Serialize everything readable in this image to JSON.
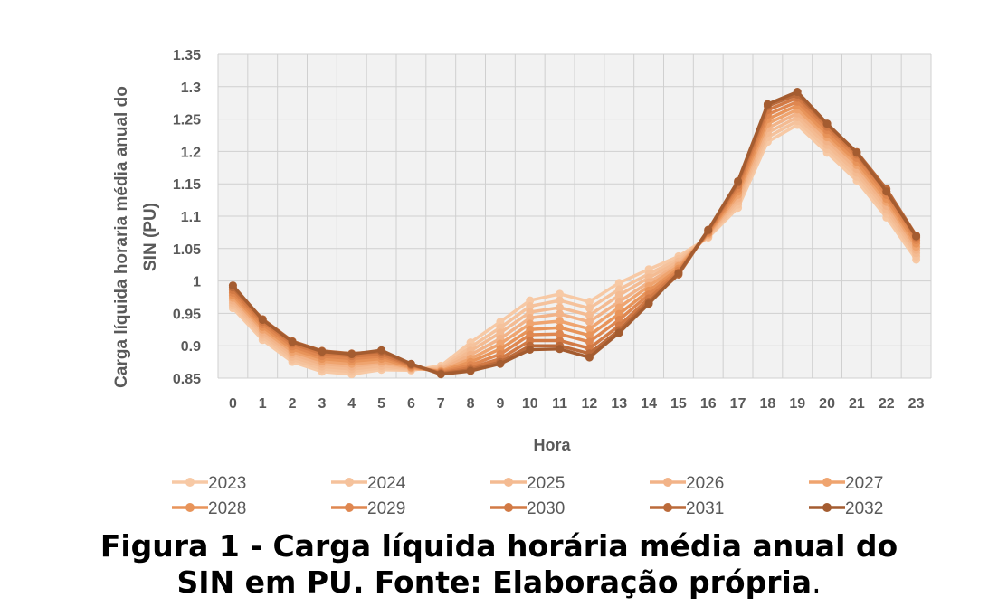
{
  "chart_data": {
    "type": "line",
    "title": "",
    "xlabel": "Hora",
    "ylabel_line1": "Carga líquida horaria média anual do",
    "ylabel_line2": "SIN (PU)",
    "x": [
      0,
      1,
      2,
      3,
      4,
      5,
      6,
      7,
      8,
      9,
      10,
      11,
      12,
      13,
      14,
      15,
      16,
      17,
      18,
      19,
      20,
      21,
      22,
      23
    ],
    "y_ticks": [
      "1.35",
      "1.3",
      "1.25",
      "1.2",
      "1.15",
      "1.1",
      "1.05",
      "1",
      "0.95",
      "0.9",
      "0.85"
    ],
    "ylim": [
      0.85,
      1.35
    ],
    "grid": true,
    "legend_position": "bottom",
    "series": [
      {
        "name": "2023",
        "color": "#f7c9a5",
        "values": [
          0.958,
          0.909,
          0.875,
          0.86,
          0.856,
          0.863,
          0.862,
          0.869,
          0.905,
          0.937,
          0.97,
          0.98,
          0.968,
          0.997,
          1.018,
          1.038,
          1.067,
          1.113,
          1.215,
          1.241,
          1.198,
          1.155,
          1.098,
          1.033
        ]
      },
      {
        "name": "2024",
        "color": "#f5c29c",
        "values": [
          0.962,
          0.913,
          0.879,
          0.864,
          0.86,
          0.866,
          0.863,
          0.866,
          0.898,
          0.928,
          0.961,
          0.97,
          0.958,
          0.987,
          1.011,
          1.034,
          1.068,
          1.118,
          1.222,
          1.247,
          1.204,
          1.161,
          1.104,
          1.038
        ]
      },
      {
        "name": "2025",
        "color": "#f4bb92",
        "values": [
          0.966,
          0.917,
          0.883,
          0.868,
          0.864,
          0.869,
          0.864,
          0.864,
          0.892,
          0.92,
          0.952,
          0.959,
          0.947,
          0.978,
          1.005,
          1.03,
          1.069,
          1.123,
          1.229,
          1.253,
          1.21,
          1.167,
          1.11,
          1.043
        ]
      },
      {
        "name": "2026",
        "color": "#f2b388",
        "values": [
          0.97,
          0.921,
          0.887,
          0.872,
          0.868,
          0.873,
          0.865,
          0.863,
          0.886,
          0.911,
          0.943,
          0.949,
          0.937,
          0.968,
          0.998,
          1.026,
          1.071,
          1.128,
          1.236,
          1.259,
          1.216,
          1.173,
          1.116,
          1.048
        ]
      },
      {
        "name": "2027",
        "color": "#efa46f",
        "values": [
          0.974,
          0.925,
          0.891,
          0.876,
          0.872,
          0.876,
          0.866,
          0.861,
          0.88,
          0.903,
          0.934,
          0.938,
          0.926,
          0.959,
          0.992,
          1.023,
          1.072,
          1.133,
          1.243,
          1.265,
          1.222,
          1.179,
          1.122,
          1.053
        ]
      },
      {
        "name": "2028",
        "color": "#e8945a",
        "values": [
          0.978,
          0.929,
          0.895,
          0.88,
          0.876,
          0.88,
          0.867,
          0.86,
          0.875,
          0.895,
          0.925,
          0.928,
          0.916,
          0.949,
          0.985,
          1.019,
          1.074,
          1.138,
          1.25,
          1.271,
          1.227,
          1.184,
          1.127,
          1.058
        ]
      },
      {
        "name": "2029",
        "color": "#df8750",
        "values": [
          0.982,
          0.933,
          0.899,
          0.884,
          0.88,
          0.884,
          0.869,
          0.859,
          0.87,
          0.887,
          0.917,
          0.918,
          0.906,
          0.94,
          0.979,
          1.016,
          1.075,
          1.143,
          1.257,
          1.277,
          1.233,
          1.19,
          1.133,
          1.063
        ]
      },
      {
        "name": "2030",
        "color": "#d27a45",
        "values": [
          0.986,
          0.937,
          0.903,
          0.888,
          0.884,
          0.887,
          0.87,
          0.858,
          0.866,
          0.88,
          0.908,
          0.908,
          0.896,
          0.931,
          0.973,
          1.013,
          1.077,
          1.148,
          1.264,
          1.283,
          1.238,
          1.195,
          1.138,
          1.067
        ]
      },
      {
        "name": "2031",
        "color": "#bb6a3a",
        "values": [
          0.99,
          0.941,
          0.907,
          0.892,
          0.888,
          0.891,
          0.871,
          0.857,
          0.863,
          0.875,
          0.9,
          0.9,
          0.888,
          0.924,
          0.968,
          1.01,
          1.078,
          1.152,
          1.27,
          1.288,
          1.242,
          1.199,
          1.142,
          1.07
        ]
      },
      {
        "name": "2032",
        "color": "#a45c30",
        "values": [
          0.993,
          0.94,
          0.906,
          0.891,
          0.887,
          0.893,
          0.872,
          0.856,
          0.861,
          0.872,
          0.894,
          0.895,
          0.882,
          0.92,
          0.965,
          1.012,
          1.079,
          1.154,
          1.273,
          1.292,
          1.243,
          1.198,
          1.138,
          1.069
        ]
      }
    ]
  },
  "caption": {
    "line1": "Figura 1 - Carga líquida horária média anual do",
    "line2_bold": "SIN em PU. Fonte: Elaboração própria",
    "line2_end": "."
  }
}
